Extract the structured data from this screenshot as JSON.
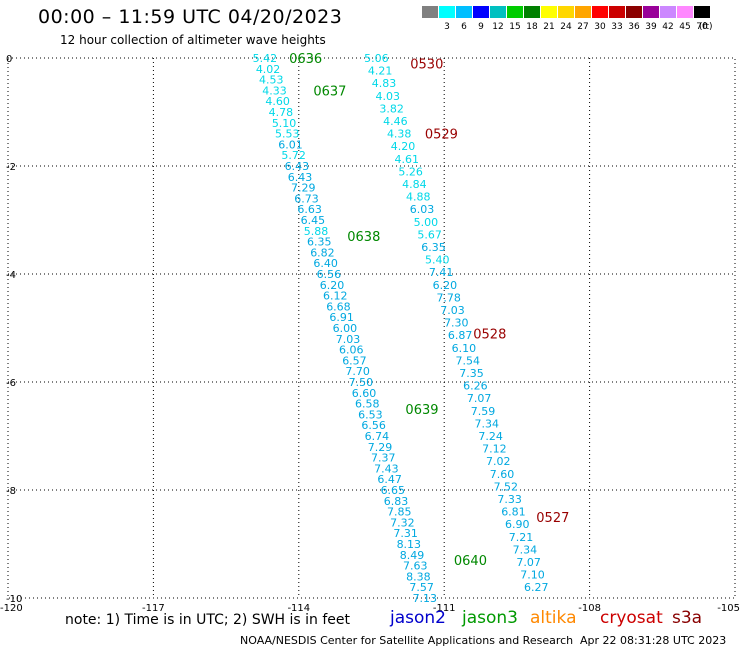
{
  "header": {
    "title": "00:00 – 11:59 UTC 04/20/2023",
    "subtitle": "12 hour collection of altimeter wave heights"
  },
  "legend": {
    "colors": [
      "#808080",
      "#00ffff",
      "#00bfff",
      "#0000ff",
      "#00c0c0",
      "#00cc00",
      "#008000",
      "#ffff00",
      "#ffd700",
      "#ffa500",
      "#ff0000",
      "#cc0000",
      "#8b0000",
      "#990099",
      "#cc88ff",
      "#ff88ff",
      "#000000"
    ],
    "labels": [
      "3",
      "6",
      "9",
      "12",
      "15",
      "18",
      "21",
      "24",
      "27",
      "30",
      "33",
      "36",
      "39",
      "42",
      "45",
      "70"
    ],
    "unit": "(ft)"
  },
  "chart_data": {
    "type": "scatter",
    "xlim": [
      -120,
      -105
    ],
    "ylim": [
      -10,
      0
    ],
    "xticks": [
      "-120",
      "-117",
      "-114",
      "-111",
      "-108",
      "-105"
    ],
    "yticks": [
      "0",
      "-2",
      "-4",
      "-6",
      "-8",
      "-10"
    ],
    "track_west": {
      "swh": [
        "5.42",
        "4.02",
        "4.53",
        "4.33",
        "4.60",
        "4.78",
        "5.10",
        "5.53",
        "6.01",
        "5.72",
        "6.43",
        "6.43",
        "7.29",
        "6.73",
        "6.63",
        "6.45",
        "5.88",
        "6.35",
        "6.82",
        "6.40",
        "6.56",
        "6.20",
        "6.12",
        "6.68",
        "6.91",
        "6.00",
        "7.03",
        "6.06",
        "6.57",
        "7.70",
        "7.50",
        "6.60",
        "6.58",
        "6.53",
        "6.56",
        "6.74",
        "7.29",
        "7.37",
        "7.43",
        "6.47",
        "6.65",
        "6.83",
        "7.85",
        "7.32",
        "7.31",
        "8.13",
        "8.49",
        "7.63",
        "8.38",
        "7.57",
        "7.13"
      ],
      "lon_start": -114.7,
      "lon_end": -111.4,
      "lat_start": 0.0,
      "lat_end": -10.0
    },
    "track_east": {
      "swh": [
        "5.06",
        "4.21",
        "4.83",
        "4.03",
        "3.82",
        "4.46",
        "4.38",
        "4.20",
        "4.61",
        "5.26",
        "4.84",
        "4.88",
        "6.03",
        "5.00",
        "5.67",
        "6.35",
        "5.40",
        "7.41",
        "6.20",
        "7.78",
        "7.03",
        "7.30",
        "6.87",
        "6.10",
        "7.54",
        "7.35",
        "6.26",
        "7.07",
        "7.59",
        "7.34",
        "7.24",
        "7.12",
        "7.02",
        "7.60",
        "7.52",
        "7.33",
        "6.81",
        "6.90",
        "7.21",
        "7.34",
        "7.07",
        "7.10",
        "6.27"
      ],
      "lon_start": -112.4,
      "lon_end": -109.1,
      "lat_start": 0.0,
      "lat_end": -9.8
    },
    "time_labels": [
      {
        "text": "0636",
        "lon": -114.2,
        "lat": 0.0,
        "sat": "jason3"
      },
      {
        "text": "0637",
        "lon": -113.7,
        "lat": -0.6,
        "sat": "jason3"
      },
      {
        "text": "0638",
        "lon": -113.0,
        "lat": -3.3,
        "sat": "jason3"
      },
      {
        "text": "0639",
        "lon": -111.8,
        "lat": -6.5,
        "sat": "jason3"
      },
      {
        "text": "0640",
        "lon": -110.8,
        "lat": -9.3,
        "sat": "jason3"
      },
      {
        "text": "0530",
        "lon": -111.7,
        "lat": -0.1,
        "sat": "cryosat"
      },
      {
        "text": "0529",
        "lon": -111.4,
        "lat": -1.4,
        "sat": "cryosat"
      },
      {
        "text": "0528",
        "lon": -110.4,
        "lat": -5.1,
        "sat": "cryosat"
      },
      {
        "text": "0527",
        "lon": -109.1,
        "lat": -8.5,
        "sat": "cryosat"
      }
    ],
    "grid": true
  },
  "notes": {
    "text": "note:  1) Time is in UTC; 2) SWH is in feet"
  },
  "satellites": [
    {
      "name": "jason2",
      "color": "#0000cc"
    },
    {
      "name": "jason3",
      "color": "#009900"
    },
    {
      "name": "altika",
      "color": "#ff8800"
    },
    {
      "name": "cryosat",
      "color": "#cc0000"
    },
    {
      "name": "s3a",
      "color": "#880000"
    }
  ],
  "footer": {
    "left": "NOAA/NESDIS Center for Satellite Applications and Research",
    "right": "Apr 22 08:31:28 UTC 2023"
  }
}
